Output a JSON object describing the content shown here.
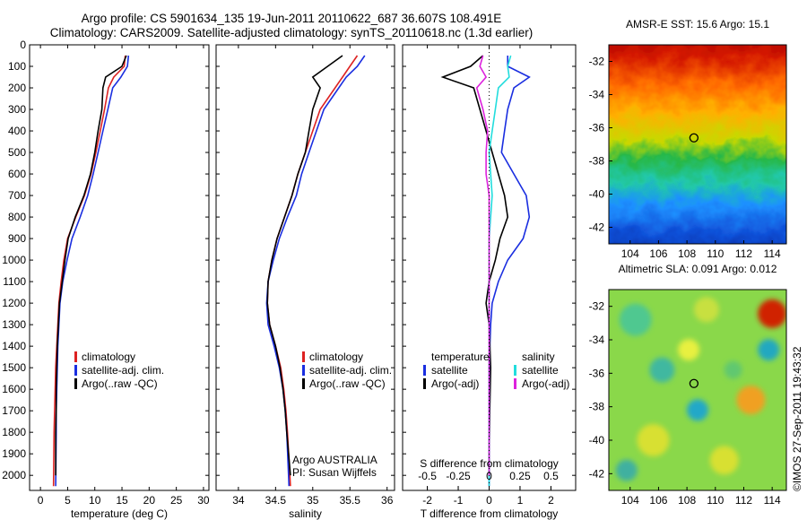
{
  "header": {
    "title_line1": "Argo profile: CS 5901634_135 19-Jun-2011 20110622_687 36.607S 108.491E",
    "title_line2": "Climatology: CARS2009. Satellite-adjusted climatology: synTS_20110618.nc (1.3d earlier)"
  },
  "colors": {
    "climatology": "#dd2222",
    "satellite": "#1a2ee0",
    "argo": "#000000",
    "satellite_s": "#22dddd",
    "argo_s": "#dd22dd"
  },
  "legend_main": [
    "climatology",
    "satellite-adj. clim.",
    "Argo(..raw -QC)"
  ],
  "legend_diff": {
    "temp_header": "temperature",
    "sal_header": "salinity",
    "temp_items": [
      "satellite",
      "Argo(-adj)"
    ],
    "sal_items": [
      "satellite",
      "Argo(-adj)"
    ]
  },
  "credit": {
    "line1": "Argo AUSTRALIA",
    "line2": "PI: Susan Wijffels"
  },
  "watermark": "©IMOS 27-Sep-2011 19:43:32",
  "chart_data": [
    {
      "type": "line",
      "name": "temperature-profile",
      "xlabel": "temperature (deg C)",
      "xlim": [
        -2,
        31
      ],
      "ylim": [
        2070,
        0
      ],
      "xticks": [
        0,
        5,
        10,
        15,
        20,
        25,
        30
      ],
      "yticks": [
        0,
        100,
        200,
        300,
        400,
        500,
        600,
        700,
        800,
        900,
        1000,
        1100,
        1200,
        1300,
        1400,
        1500,
        1600,
        1700,
        1800,
        1900,
        2000
      ],
      "series": [
        {
          "name": "climatology",
          "color": "#dd2222",
          "x": [
            15.6,
            15.4,
            13.5,
            12.5,
            11.8,
            11.0,
            10.2,
            9.3,
            8.1,
            6.5,
            5.0,
            4.3,
            3.8,
            3.4,
            3.2,
            3.0,
            2.8,
            2.7,
            2.6,
            2.5,
            2.4
          ],
          "y": [
            50,
            100,
            150,
            200,
            300,
            400,
            500,
            600,
            700,
            800,
            900,
            1000,
            1100,
            1200,
            1300,
            1400,
            1500,
            1600,
            1700,
            1800,
            2050
          ]
        },
        {
          "name": "satellite-adj. clim.",
          "color": "#1a2ee0",
          "x": [
            16.2,
            16.0,
            14.8,
            13.3,
            12.4,
            11.5,
            10.6,
            9.7,
            8.7,
            7.3,
            5.8,
            4.9,
            4.1,
            3.6,
            3.4,
            3.2,
            3.1,
            3.0,
            2.9,
            2.9,
            2.8
          ],
          "y": [
            50,
            100,
            150,
            200,
            300,
            400,
            500,
            600,
            700,
            800,
            900,
            1000,
            1100,
            1200,
            1300,
            1400,
            1500,
            1600,
            1700,
            1800,
            2050
          ]
        },
        {
          "name": "Argo(..raw -QC)",
          "color": "#000000",
          "x": [
            15.8,
            15.0,
            12.0,
            11.5,
            11.3,
            10.6,
            10.0,
            9.2,
            8.0,
            6.4,
            5.1,
            4.5,
            4.0,
            3.5,
            3.3,
            3.1,
            3.0,
            2.9,
            2.9,
            2.8,
            2.8
          ],
          "y": [
            50,
            100,
            150,
            200,
            300,
            400,
            500,
            600,
            700,
            800,
            900,
            1000,
            1100,
            1200,
            1300,
            1400,
            1500,
            1600,
            1700,
            1800,
            2000
          ]
        }
      ]
    },
    {
      "type": "line",
      "name": "salinity-profile",
      "xlabel": "salinity",
      "xlim": [
        33.7,
        36.1
      ],
      "ylim": [
        2070,
        0
      ],
      "xticks": [
        34,
        34.5,
        35,
        35.5,
        36
      ],
      "series": [
        {
          "name": "climatology",
          "color": "#dd2222",
          "x": [
            35.6,
            35.5,
            35.4,
            35.3,
            35.1,
            35.0,
            34.9,
            34.8,
            34.72,
            34.62,
            34.52,
            34.45,
            34.4,
            34.39,
            34.42,
            34.5,
            34.57,
            34.61,
            34.64,
            34.66,
            34.7
          ],
          "y": [
            50,
            100,
            150,
            200,
            300,
            400,
            500,
            600,
            700,
            800,
            900,
            1000,
            1100,
            1200,
            1300,
            1400,
            1500,
            1600,
            1700,
            1800,
            2050
          ]
        },
        {
          "name": "satellite-adj. clim.",
          "color": "#1a2ee0",
          "x": [
            35.7,
            35.6,
            35.45,
            35.35,
            35.15,
            35.05,
            34.95,
            34.85,
            34.78,
            34.66,
            34.55,
            34.47,
            34.4,
            34.38,
            34.4,
            34.48,
            34.55,
            34.6,
            34.63,
            34.65,
            34.68
          ],
          "y": [
            50,
            100,
            150,
            200,
            300,
            400,
            500,
            600,
            700,
            800,
            900,
            1000,
            1100,
            1200,
            1300,
            1400,
            1500,
            1600,
            1700,
            1800,
            2050
          ]
        },
        {
          "name": "Argo(..raw -QC)",
          "color": "#000000",
          "x": [
            35.4,
            35.2,
            35.0,
            35.1,
            35.0,
            34.95,
            34.9,
            34.8,
            34.72,
            34.62,
            34.52,
            34.45,
            34.4,
            34.39,
            34.42,
            34.5,
            34.56,
            34.6,
            34.63,
            34.65,
            34.7
          ],
          "y": [
            50,
            100,
            150,
            200,
            300,
            400,
            500,
            600,
            700,
            800,
            900,
            1000,
            1100,
            1200,
            1300,
            1400,
            1500,
            1600,
            1700,
            1800,
            2000
          ]
        }
      ]
    },
    {
      "type": "line",
      "name": "difference-profile",
      "xlabel": "T difference from climatology",
      "xlabel_top": "S difference from climatology",
      "xlim": [
        -2.8,
        2.8
      ],
      "ylim": [
        2070,
        0
      ],
      "xticks": [
        -2,
        -1,
        0,
        1,
        2
      ],
      "xticks_s": [
        -0.5,
        -0.25,
        0,
        0.25,
        0.5
      ],
      "xticks_s_labels": [
        "-0.5",
        "-0.25",
        "0",
        "0.25",
        "0.5"
      ],
      "series": [
        {
          "name": "satellite (temperature)",
          "color": "#1a2ee0",
          "x": [
            0.6,
            0.6,
            1.3,
            0.8,
            0.6,
            0.5,
            0.4,
            0.8,
            1.2,
            1.3,
            1.1,
            0.6,
            0.3,
            0.1,
            0.05,
            0.0,
            0.0,
            0.0,
            0.0
          ],
          "y": [
            50,
            100,
            150,
            200,
            300,
            400,
            500,
            600,
            700,
            800,
            900,
            1000,
            1100,
            1200,
            1300,
            1500,
            1700,
            1900,
            2050
          ]
        },
        {
          "name": "Argo(-adj) (temperature)",
          "color": "#000000",
          "x": [
            -0.2,
            -0.6,
            -1.5,
            -0.5,
            -0.3,
            -0.1,
            0.1,
            0.3,
            0.5,
            0.6,
            0.35,
            0.2,
            0.0,
            -0.1,
            0.0,
            0.05,
            0.02,
            0.0,
            0.0
          ],
          "y": [
            50,
            100,
            150,
            200,
            300,
            400,
            500,
            600,
            700,
            800,
            900,
            1000,
            1100,
            1200,
            1300,
            1500,
            1700,
            1900,
            2000
          ]
        },
        {
          "name": "satellite (salinity)",
          "color": "#22dddd",
          "x": [
            0.7,
            0.6,
            0.65,
            0.3,
            0.2,
            0.1,
            0.0,
            0.05,
            0.1,
            0.05,
            0.0,
            0.0,
            0.0,
            0.0,
            0.0,
            0.0,
            0.0,
            0.0,
            0.0
          ],
          "y": [
            50,
            100,
            150,
            200,
            300,
            400,
            500,
            600,
            700,
            800,
            900,
            1000,
            1100,
            1200,
            1300,
            1500,
            1700,
            1900,
            2050
          ]
        },
        {
          "name": "Argo(-adj) (salinity)",
          "color": "#dd22dd",
          "x": [
            -0.2,
            -0.3,
            -0.1,
            -0.4,
            -0.2,
            -0.05,
            -0.1,
            -0.1,
            0.0,
            0.0,
            0.0,
            0.0,
            0.0,
            0.0,
            0.0,
            0.0,
            0.0,
            0.0,
            0.0
          ],
          "y": [
            50,
            100,
            150,
            200,
            300,
            400,
            500,
            600,
            700,
            800,
            900,
            1000,
            1100,
            1200,
            1300,
            1500,
            1700,
            1900,
            2000
          ]
        }
      ]
    },
    {
      "type": "heatmap",
      "name": "sst-map",
      "title": "AMSR-E SST: 15.6 Argo: 15.1",
      "xlim": [
        102.5,
        115
      ],
      "ylim": [
        -43,
        -31
      ],
      "xticks": [
        104,
        106,
        108,
        110,
        112,
        114
      ],
      "yticks": [
        -32,
        -34,
        -36,
        -38,
        -40,
        -42
      ],
      "marker": {
        "lon": 108.49,
        "lat": -36.61
      }
    },
    {
      "type": "heatmap",
      "name": "sla-map",
      "title": "Altimetric SLA: 0.091 Argo: 0.012",
      "xlim": [
        102.5,
        115
      ],
      "ylim": [
        -43,
        -31
      ],
      "xticks": [
        104,
        106,
        108,
        110,
        112,
        114
      ],
      "yticks": [
        -32,
        -34,
        -36,
        -38,
        -40,
        -42
      ],
      "marker": {
        "lon": 108.49,
        "lat": -36.61
      }
    }
  ]
}
